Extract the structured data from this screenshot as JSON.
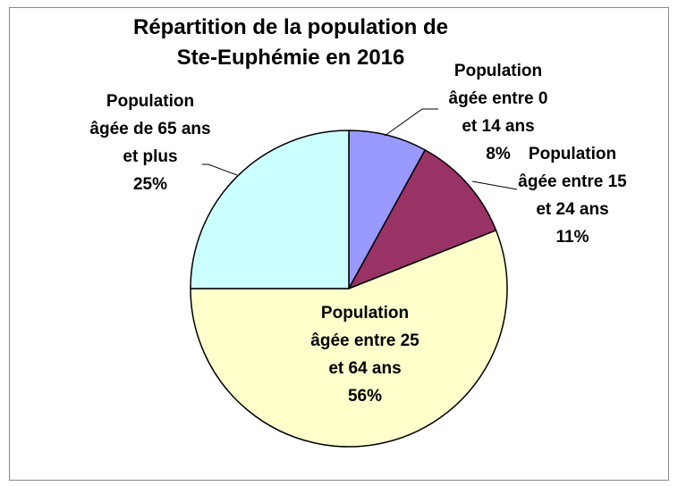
{
  "chart_data": {
    "type": "pie",
    "title": "Répartition de la population de Ste-Euphémie en 2016",
    "categories": [
      "Population âgée entre 0 et 14 ans",
      "Population âgée entre 15 et 24 ans",
      "Population âgée entre 25 et 64 ans",
      "Population âgée de 65 ans et plus"
    ],
    "values": [
      8,
      11,
      56,
      25
    ],
    "value_labels": [
      "8%",
      "11%",
      "56%",
      "25%"
    ],
    "colors": [
      "#9999ff",
      "#993366",
      "#ffffcc",
      "#ccffff"
    ]
  }
}
